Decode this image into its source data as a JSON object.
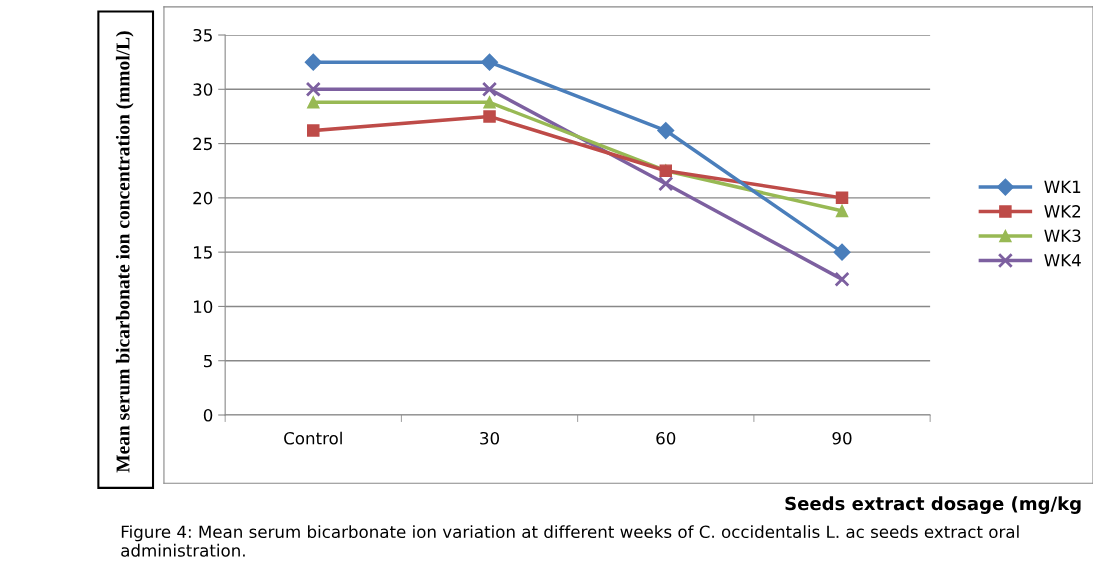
{
  "chart_data": {
    "type": "line",
    "ylabel": "Mean serum bicarbonate ion concentration (mmol/L)",
    "xlabel": "Seeds extract dosage (mg/kg",
    "categories": [
      "Control",
      "30",
      "60",
      "90"
    ],
    "series": [
      {
        "name": "WK1",
        "color": "#4a7ebb",
        "marker": "diamond",
        "values": [
          32.5,
          32.5,
          26.2,
          15
        ]
      },
      {
        "name": "WK2",
        "color": "#be4b48",
        "marker": "square",
        "values": [
          26.2,
          27.5,
          22.5,
          20
        ]
      },
      {
        "name": "WK3",
        "color": "#98b954",
        "marker": "triangle",
        "values": [
          28.8,
          28.8,
          22.5,
          18.8
        ]
      },
      {
        "name": "WK4",
        "color": "#7d60a0",
        "marker": "cross",
        "values": [
          30,
          30,
          21.3,
          12.5
        ]
      }
    ],
    "ylim": [
      0,
      35
    ],
    "yticks": [
      0,
      5,
      10,
      15,
      20,
      25,
      30,
      35
    ],
    "grid": "y",
    "legend": "right",
    "line_style": "solid",
    "annotations": [
      "Figure 4: Mean serum bicarbonate ion variation at different weeks of C. occidentalis L. ac seeds extract oral administration."
    ]
  }
}
